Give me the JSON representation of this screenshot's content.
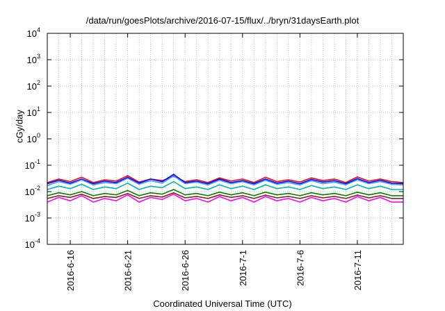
{
  "chart_data": {
    "type": "line",
    "title": "/data/run/goesPlots/archive/2016-07-15/flux/../bryn/31daysEarth.plot",
    "xlabel": "Coordinated Universal Time (UTC)",
    "ylabel": "cGy/day",
    "yscale": "log",
    "ylim": [
      0.0001,
      10000
    ],
    "xlim": [
      "2016-06-14",
      "2016-07-15"
    ],
    "grid": true,
    "x_ticks": [
      "2016-6-16",
      "2016-6-21",
      "2016-6-26",
      "2016-7-1",
      "2016-7-6",
      "2016-7-11"
    ],
    "y_ticks": [
      {
        "base": "10",
        "exp": "-4",
        "value": 0.0001
      },
      {
        "base": "10",
        "exp": "-3",
        "value": 0.001
      },
      {
        "base": "10",
        "exp": "-2",
        "value": 0.01
      },
      {
        "base": "10",
        "exp": "-1",
        "value": 0.1
      },
      {
        "base": "10",
        "exp": "0",
        "value": 1
      },
      {
        "base": "10",
        "exp": "1",
        "value": 10
      },
      {
        "base": "10",
        "exp": "2",
        "value": 100
      },
      {
        "base": "10",
        "exp": "3",
        "value": 1000
      },
      {
        "base": "10",
        "exp": "4",
        "value": 10000
      }
    ],
    "x": [
      "2016-06-14",
      "2016-06-15",
      "2016-06-16",
      "2016-06-17",
      "2016-06-18",
      "2016-06-19",
      "2016-06-20",
      "2016-06-21",
      "2016-06-22",
      "2016-06-23",
      "2016-06-24",
      "2016-06-25",
      "2016-06-26",
      "2016-06-27",
      "2016-06-28",
      "2016-06-29",
      "2016-06-30",
      "2016-07-01",
      "2016-07-02",
      "2016-07-03",
      "2016-07-04",
      "2016-07-05",
      "2016-07-06",
      "2016-07-07",
      "2016-07-08",
      "2016-07-09",
      "2016-07-10",
      "2016-07-11",
      "2016-07-12",
      "2016-07-13",
      "2016-07-14",
      "2016-07-15"
    ],
    "series": [
      {
        "color": "#ff0000",
        "values": [
          0.022,
          0.03,
          0.024,
          0.035,
          0.022,
          0.028,
          0.025,
          0.04,
          0.023,
          0.03,
          0.026,
          0.038,
          0.024,
          0.028,
          0.022,
          0.033,
          0.025,
          0.03,
          0.022,
          0.035,
          0.024,
          0.028,
          0.023,
          0.033,
          0.026,
          0.03,
          0.022,
          0.036,
          0.025,
          0.03,
          0.024,
          0.022
        ]
      },
      {
        "color": "#0000ff",
        "values": [
          0.02,
          0.027,
          0.021,
          0.03,
          0.02,
          0.025,
          0.022,
          0.035,
          0.021,
          0.03,
          0.024,
          0.045,
          0.022,
          0.025,
          0.02,
          0.03,
          0.022,
          0.026,
          0.02,
          0.03,
          0.021,
          0.025,
          0.02,
          0.029,
          0.023,
          0.026,
          0.02,
          0.031,
          0.022,
          0.027,
          0.021,
          0.02
        ]
      },
      {
        "color": "#3399ff",
        "values": [
          0.017,
          0.024,
          0.019,
          0.028,
          0.018,
          0.022,
          0.02,
          0.032,
          0.019,
          0.026,
          0.021,
          0.04,
          0.02,
          0.023,
          0.018,
          0.027,
          0.02,
          0.024,
          0.018,
          0.027,
          0.019,
          0.022,
          0.018,
          0.026,
          0.02,
          0.023,
          0.018,
          0.028,
          0.02,
          0.024,
          0.019,
          0.018
        ]
      },
      {
        "color": "#00b8a8",
        "values": [
          0.012,
          0.016,
          0.013,
          0.019,
          0.012,
          0.015,
          0.013,
          0.021,
          0.012,
          0.016,
          0.014,
          0.024,
          0.013,
          0.015,
          0.012,
          0.018,
          0.013,
          0.016,
          0.012,
          0.018,
          0.013,
          0.015,
          0.012,
          0.017,
          0.013,
          0.015,
          0.012,
          0.018,
          0.013,
          0.016,
          0.012,
          0.012
        ]
      },
      {
        "color": "#008000",
        "values": [
          0.007,
          0.009,
          0.0075,
          0.01,
          0.007,
          0.0085,
          0.0075,
          0.011,
          0.007,
          0.009,
          0.008,
          0.012,
          0.0075,
          0.0085,
          0.007,
          0.0095,
          0.0075,
          0.009,
          0.007,
          0.0095,
          0.0075,
          0.0085,
          0.007,
          0.009,
          0.0075,
          0.0085,
          0.007,
          0.0095,
          0.0075,
          0.009,
          0.007,
          0.007
        ]
      },
      {
        "color": "#8b1a1a",
        "values": [
          0.0055,
          0.007,
          0.006,
          0.008,
          0.0055,
          0.0065,
          0.006,
          0.0085,
          0.0055,
          0.007,
          0.0062,
          0.009,
          0.0058,
          0.0066,
          0.0055,
          0.0075,
          0.006,
          0.007,
          0.0055,
          0.0074,
          0.0058,
          0.0066,
          0.0055,
          0.007,
          0.0058,
          0.0066,
          0.0055,
          0.0074,
          0.0058,
          0.007,
          0.0055,
          0.0055
        ]
      },
      {
        "color": "#ff00ff",
        "values": [
          0.004,
          0.006,
          0.0045,
          0.007,
          0.004,
          0.0055,
          0.0045,
          0.0075,
          0.004,
          0.006,
          0.005,
          0.008,
          0.0045,
          0.0055,
          0.004,
          0.0065,
          0.0045,
          0.006,
          0.004,
          0.0065,
          0.0045,
          0.0055,
          0.004,
          0.006,
          0.0045,
          0.0055,
          0.004,
          0.0065,
          0.0045,
          0.006,
          0.004,
          0.004
        ]
      }
    ]
  }
}
